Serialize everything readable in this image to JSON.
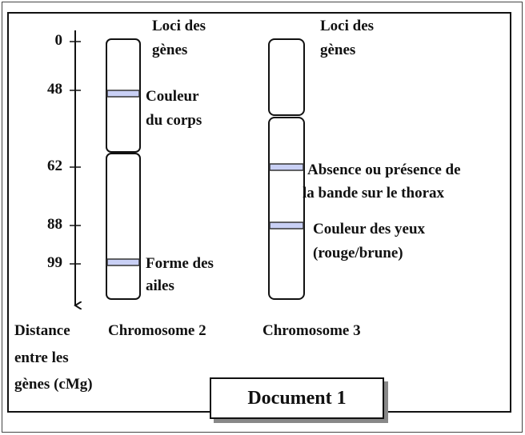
{
  "axis": {
    "ticks": [
      "0",
      "48",
      "62",
      "88",
      "99"
    ],
    "label_lines": [
      "Distance",
      "entre les",
      "gènes (cMg)"
    ]
  },
  "chromosome2": {
    "title": "Chromosome 2",
    "loci_header": [
      "Loci des",
      "gènes"
    ],
    "genes": [
      {
        "lines": [
          "Couleur",
          "du corps"
        ],
        "position_cMg": 48
      },
      {
        "lines": [
          "Forme des",
          "ailes"
        ],
        "position_cMg": 99
      }
    ]
  },
  "chromosome3": {
    "title": "Chromosome 3",
    "loci_header": [
      "Loci des",
      "gènes"
    ],
    "genes": [
      {
        "lines": [
          "Absence ou présence de",
          "la bande sur le thorax"
        ],
        "position_cMg": 62
      },
      {
        "lines": [
          "Couleur des yeux",
          "(rouge/brune)"
        ],
        "position_cMg": 88
      }
    ]
  },
  "document_label": "Document 1",
  "colors": {
    "band": "#c9d0f5",
    "line": "#111111"
  }
}
